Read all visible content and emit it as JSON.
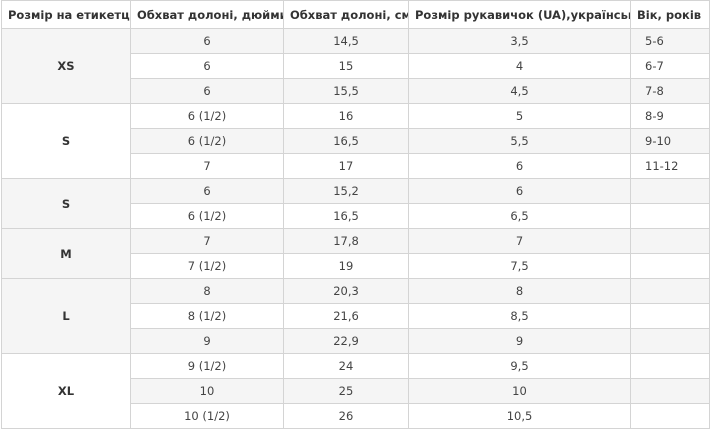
{
  "table": {
    "header": [
      "Розмір на етикетці",
      "Обхват долоні, дюйми",
      "Обхват долоні, см",
      "Розмір рукавичок (UA),український",
      "Вік, років"
    ],
    "groups": [
      {
        "label": "XS",
        "rows": [
          [
            "6",
            "14,5",
            "3,5",
            "5-6"
          ],
          [
            "6",
            "15",
            "4",
            "6-7"
          ],
          [
            "6",
            "15,5",
            "4,5",
            "7-8"
          ]
        ]
      },
      {
        "label": "S",
        "rows": [
          [
            "6 (1/2)",
            "16",
            "5",
            "8-9"
          ],
          [
            "6 (1/2)",
            "16,5",
            "5,5",
            "9-10"
          ],
          [
            "7",
            "17",
            "6",
            "11-12"
          ]
        ]
      },
      {
        "label": "S",
        "rows": [
          [
            "6",
            "15,2",
            "6"
          ],
          [
            "6 (1/2)",
            "16,5",
            "6,5"
          ]
        ]
      },
      {
        "label": "M",
        "rows": [
          [
            "7",
            "17,8",
            "7"
          ],
          [
            "7 (1/2)",
            "19",
            "7,5"
          ]
        ]
      },
      {
        "label": "L",
        "rows": [
          [
            "8",
            "20,3",
            "8"
          ],
          [
            "8 (1/2)",
            "21,6",
            "8,5"
          ],
          [
            "9",
            "22,9",
            "9"
          ]
        ]
      },
      {
        "label": "XL",
        "rows": [
          [
            "9 (1/2)",
            "24",
            "9,5"
          ],
          [
            "10",
            "25",
            "10"
          ],
          [
            "10 (1/2)",
            "26",
            "10,5"
          ]
        ]
      }
    ]
  }
}
